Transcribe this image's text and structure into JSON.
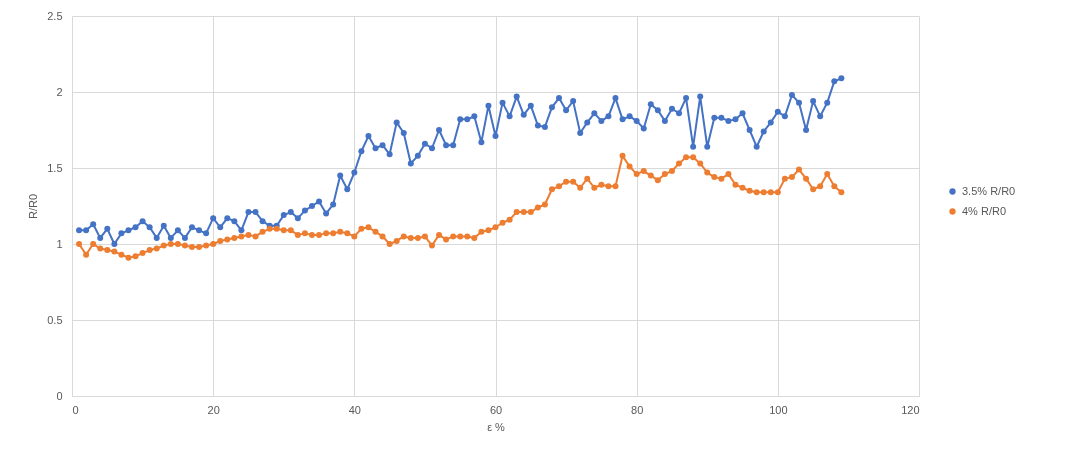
{
  "chart_data": {
    "type": "line",
    "xlabel": "ε %",
    "ylabel": "R/R0",
    "x": [
      1,
      2,
      3,
      4,
      5,
      6,
      7,
      8,
      9,
      10,
      11,
      12,
      13,
      14,
      15,
      16,
      17,
      18,
      19,
      20,
      21,
      22,
      23,
      24,
      25,
      26,
      27,
      28,
      29,
      30,
      31,
      32,
      33,
      34,
      35,
      36,
      37,
      38,
      39,
      40,
      41,
      42,
      43,
      44,
      45,
      46,
      47,
      48,
      49,
      50,
      51,
      52,
      53,
      54,
      55,
      56,
      57,
      58,
      59,
      60,
      61,
      62,
      63,
      64,
      65,
      66,
      67,
      68,
      69,
      70,
      71,
      72,
      73,
      74,
      75,
      76,
      77,
      78,
      79,
      80,
      81,
      82,
      83,
      84,
      85,
      86,
      87,
      88,
      89,
      90,
      91,
      92,
      93,
      94,
      95,
      96,
      97,
      98,
      99,
      100,
      101,
      102,
      103,
      104,
      105,
      106,
      107,
      108,
      109
    ],
    "series": [
      {
        "name": "3.5% R/R0",
        "color": "#4472c4",
        "values": [
          1.09,
          1.09,
          1.13,
          1.04,
          1.1,
          1.0,
          1.07,
          1.09,
          1.11,
          1.15,
          1.11,
          1.04,
          1.12,
          1.04,
          1.09,
          1.04,
          1.11,
          1.09,
          1.07,
          1.17,
          1.11,
          1.17,
          1.15,
          1.09,
          1.21,
          1.21,
          1.15,
          1.12,
          1.12,
          1.19,
          1.21,
          1.17,
          1.22,
          1.25,
          1.28,
          1.2,
          1.26,
          1.45,
          1.36,
          1.47,
          1.61,
          1.71,
          1.63,
          1.65,
          1.59,
          1.8,
          1.73,
          1.53,
          1.58,
          1.66,
          1.63,
          1.75,
          1.65,
          1.65,
          1.82,
          1.82,
          1.84,
          1.67,
          1.91,
          1.71,
          1.93,
          1.84,
          1.97,
          1.85,
          1.91,
          1.78,
          1.77,
          1.9,
          1.96,
          1.88,
          1.94,
          1.73,
          1.8,
          1.86,
          1.81,
          1.84,
          1.96,
          1.82,
          1.84,
          1.81,
          1.76,
          1.92,
          1.88,
          1.81,
          1.89,
          1.86,
          1.96,
          1.64,
          1.97,
          1.64,
          1.83,
          1.83,
          1.81,
          1.82,
          1.86,
          1.75,
          1.64,
          1.74,
          1.8,
          1.87,
          1.84,
          1.98,
          1.93,
          1.75,
          1.94,
          1.84,
          1.93,
          2.07,
          2.09
        ]
      },
      {
        "name": "4% R/R0",
        "color": "#ed7d31",
        "values": [
          1.0,
          0.93,
          1.0,
          0.97,
          0.96,
          0.95,
          0.93,
          0.91,
          0.92,
          0.94,
          0.96,
          0.97,
          0.99,
          1.0,
          1.0,
          0.99,
          0.98,
          0.98,
          0.99,
          1.0,
          1.02,
          1.03,
          1.04,
          1.05,
          1.06,
          1.05,
          1.08,
          1.1,
          1.1,
          1.09,
          1.09,
          1.06,
          1.07,
          1.06,
          1.06,
          1.07,
          1.07,
          1.08,
          1.07,
          1.05,
          1.1,
          1.11,
          1.08,
          1.05,
          1.0,
          1.02,
          1.05,
          1.04,
          1.04,
          1.05,
          0.99,
          1.06,
          1.03,
          1.05,
          1.05,
          1.05,
          1.04,
          1.08,
          1.09,
          1.11,
          1.14,
          1.16,
          1.21,
          1.21,
          1.21,
          1.24,
          1.26,
          1.36,
          1.38,
          1.41,
          1.41,
          1.37,
          1.43,
          1.37,
          1.39,
          1.38,
          1.38,
          1.58,
          1.51,
          1.46,
          1.48,
          1.45,
          1.42,
          1.46,
          1.48,
          1.53,
          1.57,
          1.57,
          1.53,
          1.47,
          1.44,
          1.43,
          1.46,
          1.39,
          1.37,
          1.35,
          1.34,
          1.34,
          1.34,
          1.34,
          1.43,
          1.44,
          1.49,
          1.43,
          1.36,
          1.38,
          1.46,
          1.38,
          1.34
        ]
      }
    ],
    "xlim": [
      0,
      120
    ],
    "xticks": [
      0,
      20,
      40,
      60,
      80,
      100,
      120
    ],
    "ylim": [
      0,
      2.5
    ],
    "yticks": [
      0,
      0.5,
      1,
      1.5,
      2,
      2.5
    ],
    "grid": true,
    "legend": "right",
    "marker": "circle",
    "line_style": "solid"
  }
}
